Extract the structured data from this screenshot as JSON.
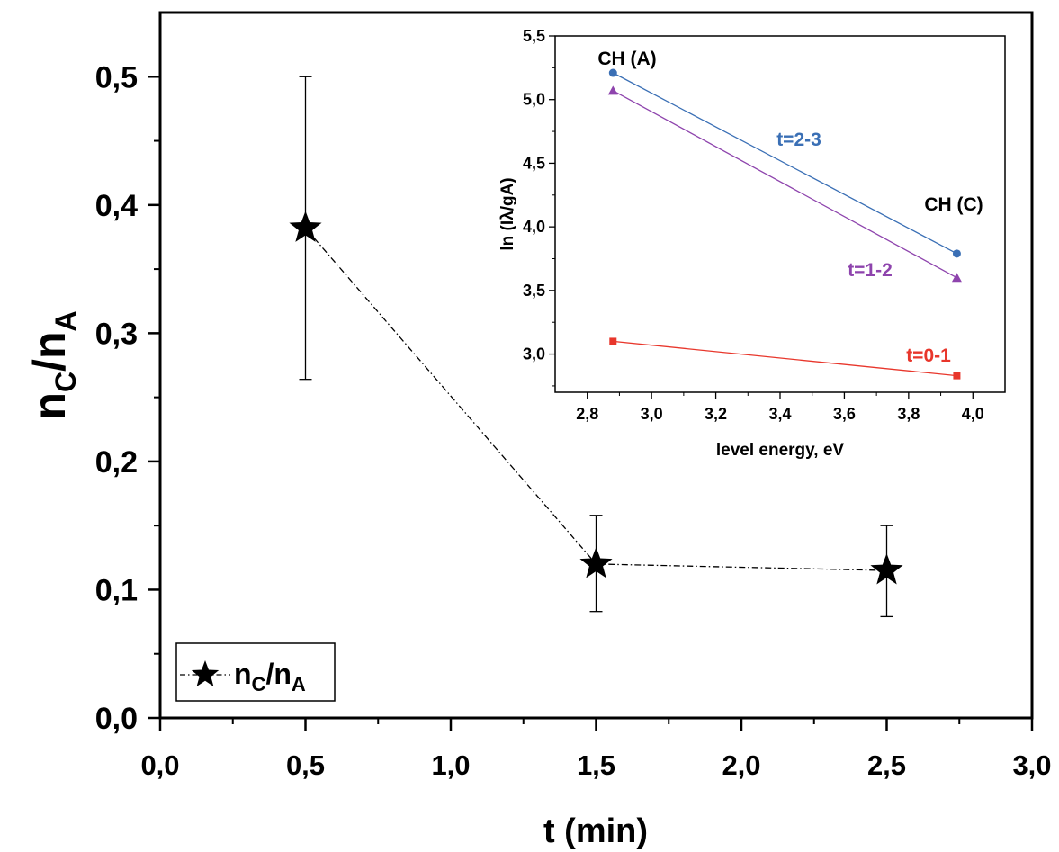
{
  "chart_data": [
    {
      "type": "scatter",
      "title": "",
      "xlabel": "t (min)",
      "ylabel_parts": {
        "main": "n",
        "sub1": "C",
        "slash": "/n",
        "sub2": "A"
      },
      "xlim": [
        0.0,
        3.0
      ],
      "ylim": [
        0.0,
        0.55
      ],
      "xticks": [
        0.0,
        0.5,
        1.0,
        1.5,
        2.0,
        2.5,
        3.0
      ],
      "xtick_labels": [
        "0,0",
        "0,5",
        "1,0",
        "1,5",
        "2,0",
        "2,5",
        "3,0"
      ],
      "yticks": [
        0.0,
        0.1,
        0.2,
        0.3,
        0.4,
        0.5
      ],
      "ytick_labels": [
        "0,0",
        "0,1",
        "0,2",
        "0,3",
        "0,4",
        "0,5"
      ],
      "grid": false,
      "legend": {
        "placement": "bottom-left",
        "entries": [
          {
            "main": "n",
            "sub1": "C",
            "slash": "/n",
            "sub2": "A"
          }
        ]
      },
      "series": [
        {
          "x": [
            0.5,
            1.5,
            2.5
          ],
          "y": [
            0.382,
            0.12,
            0.115
          ],
          "yerr_low": [
            0.264,
            0.083,
            0.079
          ],
          "yerr_high": [
            0.5,
            0.158,
            0.15
          ],
          "marker": "star",
          "line": "dash-dot",
          "color": "#000000"
        }
      ]
    },
    {
      "type": "line",
      "title": "",
      "xlabel": "level energy, eV",
      "ylabel": "ln (Iλ/gA)",
      "xlim": [
        2.7,
        4.1
      ],
      "ylim": [
        2.7,
        5.5
      ],
      "xticks": [
        2.8,
        3.0,
        3.2,
        3.4,
        3.6,
        3.8,
        4.0
      ],
      "xtick_labels": [
        "2,8",
        "3,0",
        "3,2",
        "3,4",
        "3,6",
        "3,8",
        "4,0"
      ],
      "yticks": [
        3.0,
        3.5,
        4.0,
        4.5,
        5.0,
        5.5
      ],
      "ytick_labels": [
        "3,0",
        "3,5",
        "4,0",
        "4,5",
        "5,0",
        "5,5"
      ],
      "grid": false,
      "placement": "top-right",
      "annotations": [
        "CH (A)",
        "CH (C)"
      ],
      "series": [
        {
          "name": "t=2-3",
          "x": [
            2.88,
            3.95
          ],
          "y": [
            5.21,
            3.79
          ],
          "color": "#3a6fb5",
          "marker": "circle"
        },
        {
          "name": "t=1-2",
          "x": [
            2.88,
            3.95
          ],
          "y": [
            5.07,
            3.6
          ],
          "color": "#8e44ad",
          "marker": "triangle"
        },
        {
          "name": "t=0-1",
          "x": [
            2.88,
            3.95
          ],
          "y": [
            3.1,
            2.83
          ],
          "color": "#e8362b",
          "marker": "square"
        }
      ]
    }
  ]
}
